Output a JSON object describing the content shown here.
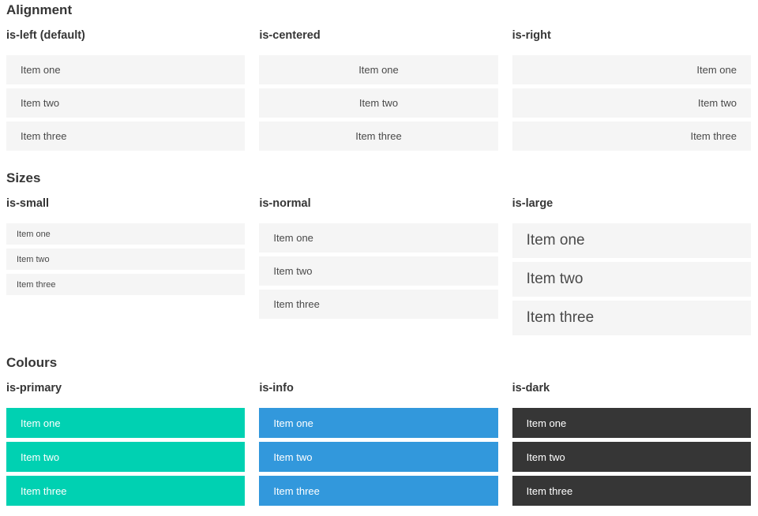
{
  "palette": {
    "primary": "#00d1b2",
    "info": "#3298dc",
    "dark": "#363636",
    "item_background": "#f5f5f5",
    "item_text": "#4a4a4a",
    "heading_text": "#363636",
    "colored_item_text": "#ffffff"
  },
  "sections": [
    {
      "title": "Alignment",
      "columns": [
        {
          "label": "is-left (default)",
          "items": [
            "Item one",
            "Item two",
            "Item three"
          ]
        },
        {
          "label": "is-centered",
          "items": [
            "Item one",
            "Item two",
            "Item three"
          ]
        },
        {
          "label": "is-right",
          "items": [
            "Item one",
            "Item two",
            "Item three"
          ]
        }
      ]
    },
    {
      "title": "Sizes",
      "columns": [
        {
          "label": "is-small",
          "items": [
            "Item one",
            "Item two",
            "Item three"
          ]
        },
        {
          "label": "is-normal",
          "items": [
            "Item one",
            "Item two",
            "Item three"
          ]
        },
        {
          "label": "is-large",
          "items": [
            "Item one",
            "Item two",
            "Item three"
          ]
        }
      ]
    },
    {
      "title": "Colours",
      "columns": [
        {
          "label": "is-primary",
          "items": [
            "Item one",
            "Item two",
            "Item three"
          ]
        },
        {
          "label": "is-info",
          "items": [
            "Item one",
            "Item two",
            "Item three"
          ]
        },
        {
          "label": "is-dark",
          "items": [
            "Item one",
            "Item two",
            "Item three"
          ]
        }
      ]
    }
  ]
}
